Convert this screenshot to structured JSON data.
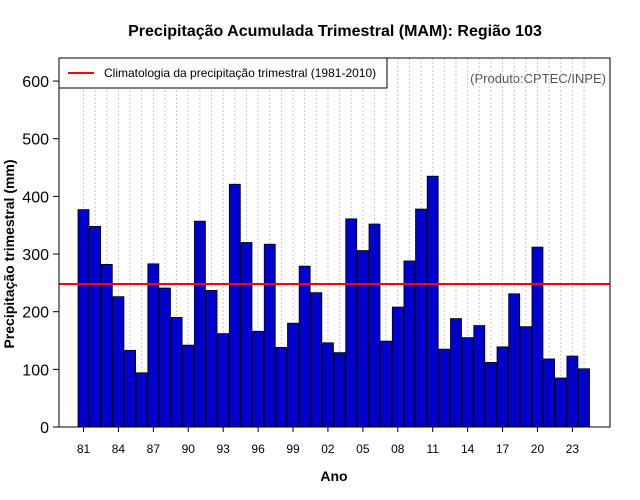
{
  "chart_data": {
    "type": "bar",
    "title": "Precipitação Acumulada Trimestral (MAM): Região 103",
    "xlabel": "Ano",
    "ylabel": "Precipitação trimestral (mm)",
    "credit": "(Produto:CPTEC/INPE)",
    "legend": {
      "label": "Climatologia da precipitação trimestral (1981-2010)",
      "color": "#ff0000",
      "placement": "top-left"
    },
    "ylim": [
      0,
      640
    ],
    "yticks": [
      0,
      100,
      200,
      300,
      400,
      500,
      600
    ],
    "climatology": 248,
    "bar_color": "#0000cc",
    "line_color": "#ff0000",
    "grid": "vertical dotted",
    "xtick_every": 3,
    "categories": [
      "81",
      "82",
      "83",
      "84",
      "85",
      "86",
      "87",
      "88",
      "89",
      "90",
      "91",
      "92",
      "93",
      "94",
      "95",
      "96",
      "97",
      "98",
      "99",
      "00",
      "01",
      "02",
      "03",
      "04",
      "05",
      "06",
      "07",
      "08",
      "09",
      "10",
      "11",
      "12",
      "13",
      "14",
      "15",
      "16",
      "17",
      "18",
      "19",
      "20",
      "21",
      "22",
      "23",
      "24"
    ],
    "values": [
      377,
      348,
      282,
      226,
      133,
      94,
      283,
      241,
      190,
      142,
      357,
      237,
      162,
      421,
      320,
      166,
      317,
      138,
      180,
      279,
      233,
      146,
      129,
      361,
      306,
      352,
      149,
      208,
      288,
      378,
      435,
      135,
      188,
      155,
      176,
      112,
      139,
      231,
      174,
      312,
      118,
      85,
      123,
      101
    ]
  }
}
